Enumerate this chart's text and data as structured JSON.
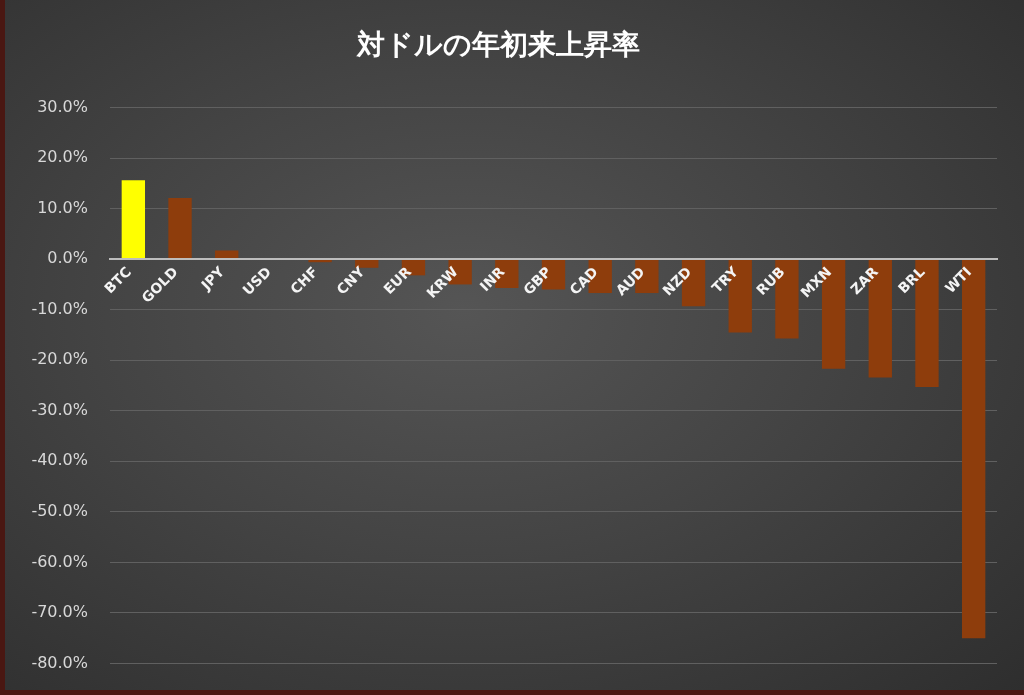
{
  "chart_data": {
    "type": "bar",
    "title": "対ドルの年初来上昇率",
    "categories": [
      "BTC",
      "GOLD",
      "JPY",
      "USD",
      "CHF",
      "CNY",
      "EUR",
      "KRW",
      "INR",
      "GBP",
      "CAD",
      "AUD",
      "NZD",
      "TRY",
      "RUB",
      "MXN",
      "ZAR",
      "BRL",
      "WTI"
    ],
    "values": [
      15.6,
      12.1,
      1.7,
      0,
      -0.6,
      -1.7,
      -3.2,
      -5.0,
      -5.7,
      -6.0,
      -6.7,
      -6.7,
      -9.3,
      -14.5,
      -15.7,
      -21.7,
      -23.4,
      -25.3,
      -75.0
    ],
    "colors": [
      "#ffff00",
      "#8e3d0c",
      "#8e3d0c",
      "#8e3d0c",
      "#8e3d0c",
      "#8e3d0c",
      "#8e3d0c",
      "#8e3d0c",
      "#8e3d0c",
      "#8e3d0c",
      "#8e3d0c",
      "#8e3d0c",
      "#8e3d0c",
      "#8e3d0c",
      "#8e3d0c",
      "#8e3d0c",
      "#8e3d0c",
      "#8e3d0c",
      "#8e3d0c"
    ],
    "ylim": [
      -80,
      30
    ],
    "yticks": [
      {
        "value": 30,
        "label": "30.0%"
      },
      {
        "value": 20,
        "label": "20.0%"
      },
      {
        "value": 10,
        "label": "10.0%"
      },
      {
        "value": 0,
        "label": "0.0%"
      },
      {
        "value": -10,
        "label": "-10.0%"
      },
      {
        "value": -20,
        "label": "-20.0%"
      },
      {
        "value": -30,
        "label": "-30.0%"
      },
      {
        "value": -40,
        "label": "-40.0%"
      },
      {
        "value": -50,
        "label": "-50.0%"
      },
      {
        "value": -60,
        "label": "-60.0%"
      },
      {
        "value": -70,
        "label": "-70.0%"
      },
      {
        "value": -80,
        "label": "-80.0%"
      }
    ],
    "grid": "y"
  }
}
